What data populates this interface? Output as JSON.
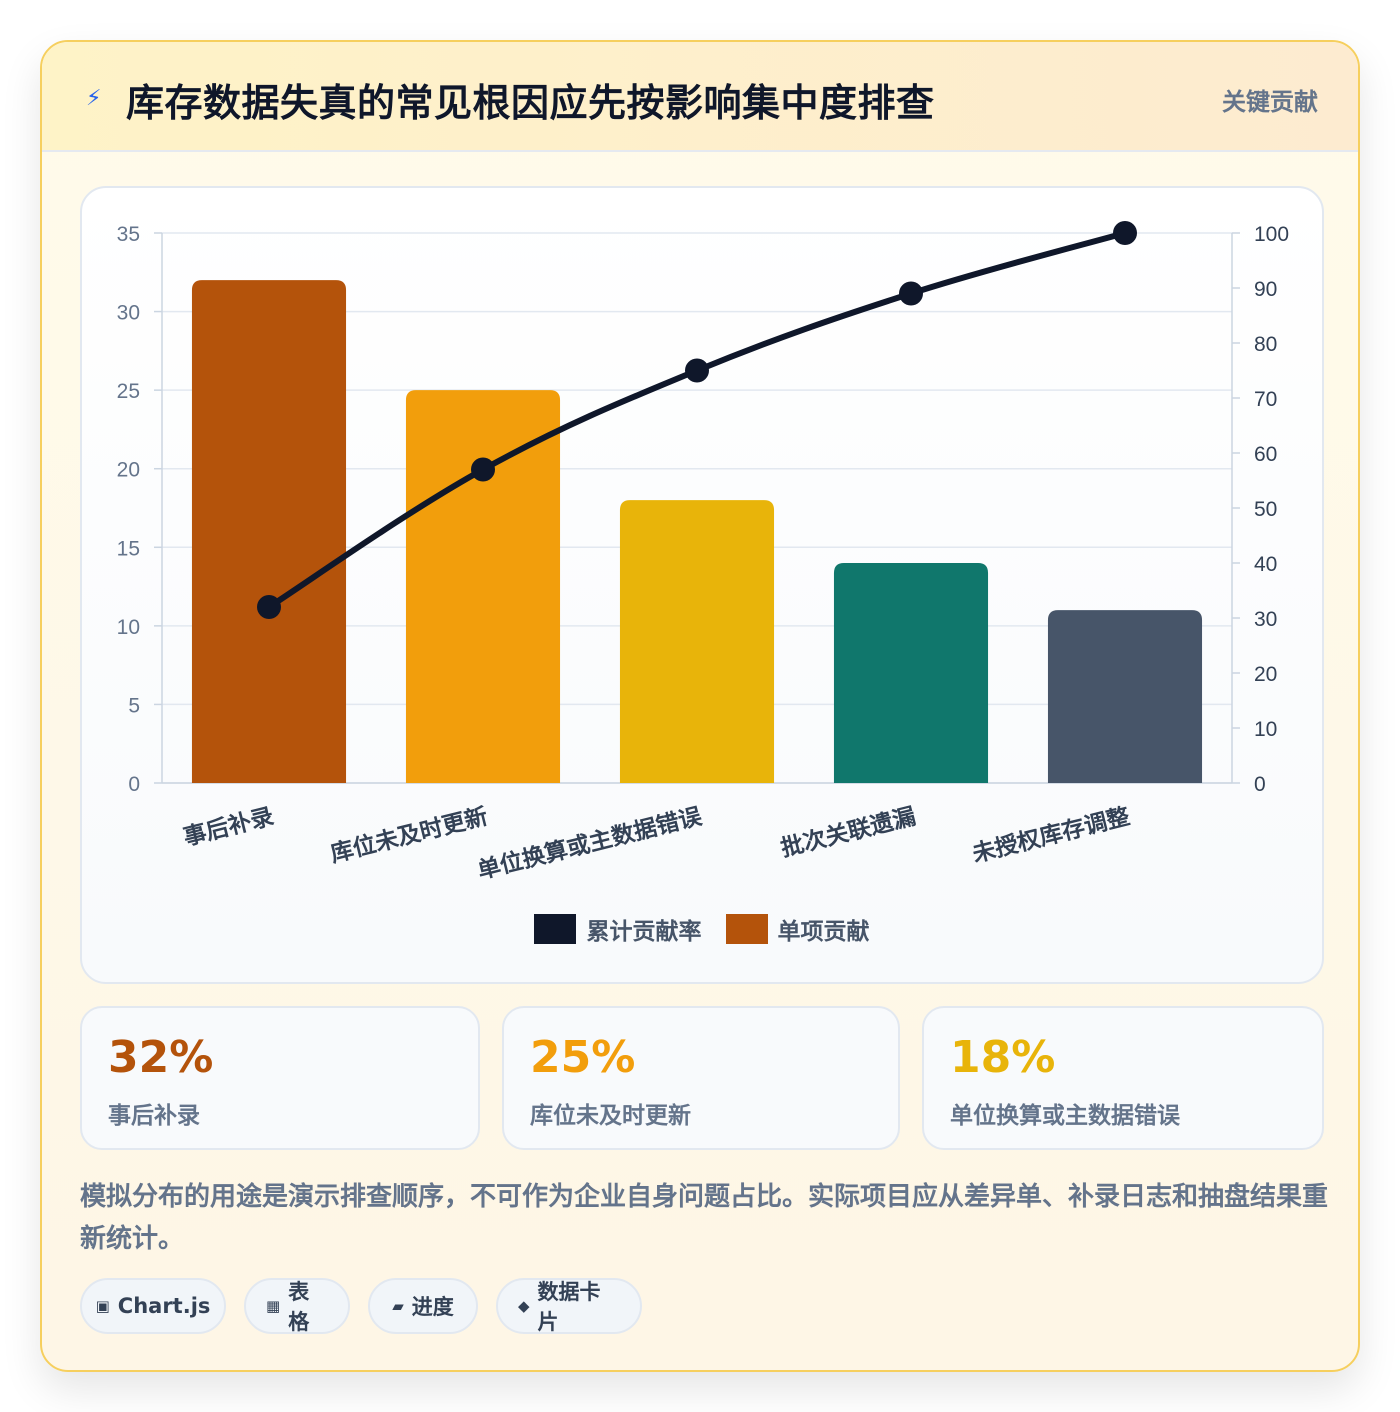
{
  "header": {
    "icon": "lightning-icon",
    "title": "库存数据失真的常见根因应先按影响集中度排查",
    "tag": "关键贡献"
  },
  "chart_data": {
    "type": "bar",
    "categories": [
      "事后补录",
      "库位未及时更新",
      "单位换算或主数据错误",
      "批次关联遗漏",
      "未授权库存调整"
    ],
    "series": [
      {
        "name": "单项贡献",
        "type": "bar",
        "axis": "left",
        "values": [
          32,
          25,
          18,
          14,
          11
        ],
        "colors": [
          "#b4530b",
          "#f29e0c",
          "#e8b40a",
          "#10776c",
          "#475569"
        ]
      },
      {
        "name": "累计贡献率",
        "type": "line",
        "axis": "right",
        "values": [
          32,
          57,
          75,
          89,
          100
        ],
        "color": "#0f172a"
      }
    ],
    "y_left": {
      "min": 0,
      "max": 35,
      "ticks": [
        0,
        5,
        10,
        15,
        20,
        25,
        30,
        35
      ]
    },
    "y_right": {
      "min": 0,
      "max": 100,
      "ticks": [
        0,
        10,
        20,
        30,
        40,
        50,
        60,
        70,
        80,
        90,
        100
      ]
    },
    "grid": true,
    "legend": {
      "position": "bottom",
      "items": [
        {
          "label": "累计贡献率",
          "color": "#0f172a"
        },
        {
          "label": "单项贡献",
          "color": "#b4530b"
        }
      ]
    }
  },
  "stats": [
    {
      "value": "32%",
      "label": "事后补录",
      "color": "#b4530b"
    },
    {
      "value": "25%",
      "label": "库位未及时更新",
      "color": "#f29e0c"
    },
    {
      "value": "18%",
      "label": "单位换算或主数据错误",
      "color": "#e8b40a"
    }
  ],
  "note": "模拟分布的用途是演示排查顺序，不可作为企业自身问题占比。实际项目应从差异单、补录日志和抽盘结果重新统计。",
  "chips": [
    {
      "icon": "chart-icon",
      "glyph": "▣",
      "label": "Chart.js"
    },
    {
      "icon": "table-icon",
      "glyph": "▦",
      "label": "表格"
    },
    {
      "icon": "progress-icon",
      "glyph": "▰",
      "label": "进度"
    },
    {
      "icon": "diamond-icon",
      "glyph": "◆",
      "label": "数据卡片"
    }
  ]
}
